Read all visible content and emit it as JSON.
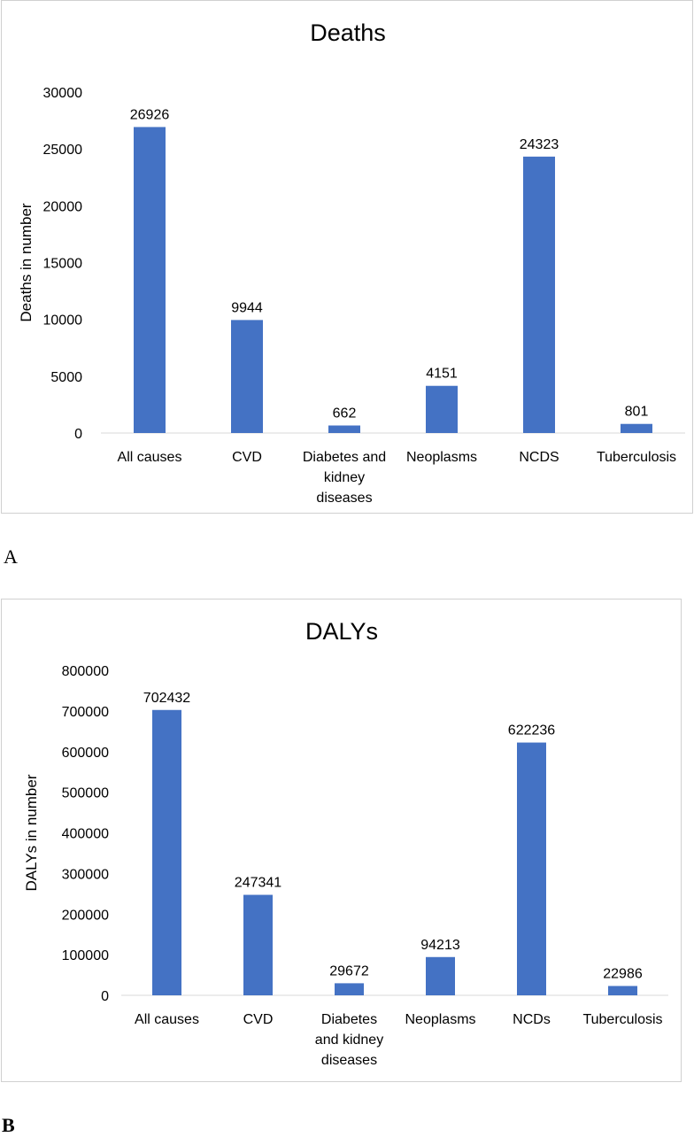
{
  "panels": {
    "a_letter": "A",
    "b_letter": "B"
  },
  "colors": {
    "bar": "#4472c4",
    "text": "#404040",
    "axis": "#d9d9d9"
  },
  "chart_data": [
    {
      "type": "bar",
      "title": "Deaths",
      "ylabel": "Deaths in number",
      "xlabel": "",
      "categories": [
        "All causes",
        "CVD",
        "Diabetes and kidney diseases",
        "Neoplasms",
        "NCDS",
        "Tuberculosis"
      ],
      "values": [
        26926,
        9944,
        662,
        4151,
        24323,
        801
      ],
      "ylim": [
        0,
        30000
      ],
      "yticks": [
        0,
        5000,
        10000,
        15000,
        20000,
        25000,
        30000
      ],
      "grid": false,
      "data_labels": true
    },
    {
      "type": "bar",
      "title": "DALYs",
      "ylabel": "DALYs in number",
      "xlabel": "",
      "categories": [
        "All causes",
        "CVD",
        "Diabetes and kidney diseases",
        "Neoplasms",
        "NCDs",
        "Tuberculosis"
      ],
      "values": [
        702432,
        247341,
        29672,
        94213,
        622236,
        22986
      ],
      "ylim": [
        0,
        800000
      ],
      "yticks": [
        0,
        100000,
        200000,
        300000,
        400000,
        500000,
        600000,
        700000,
        800000
      ],
      "grid": false,
      "data_labels": true
    }
  ]
}
